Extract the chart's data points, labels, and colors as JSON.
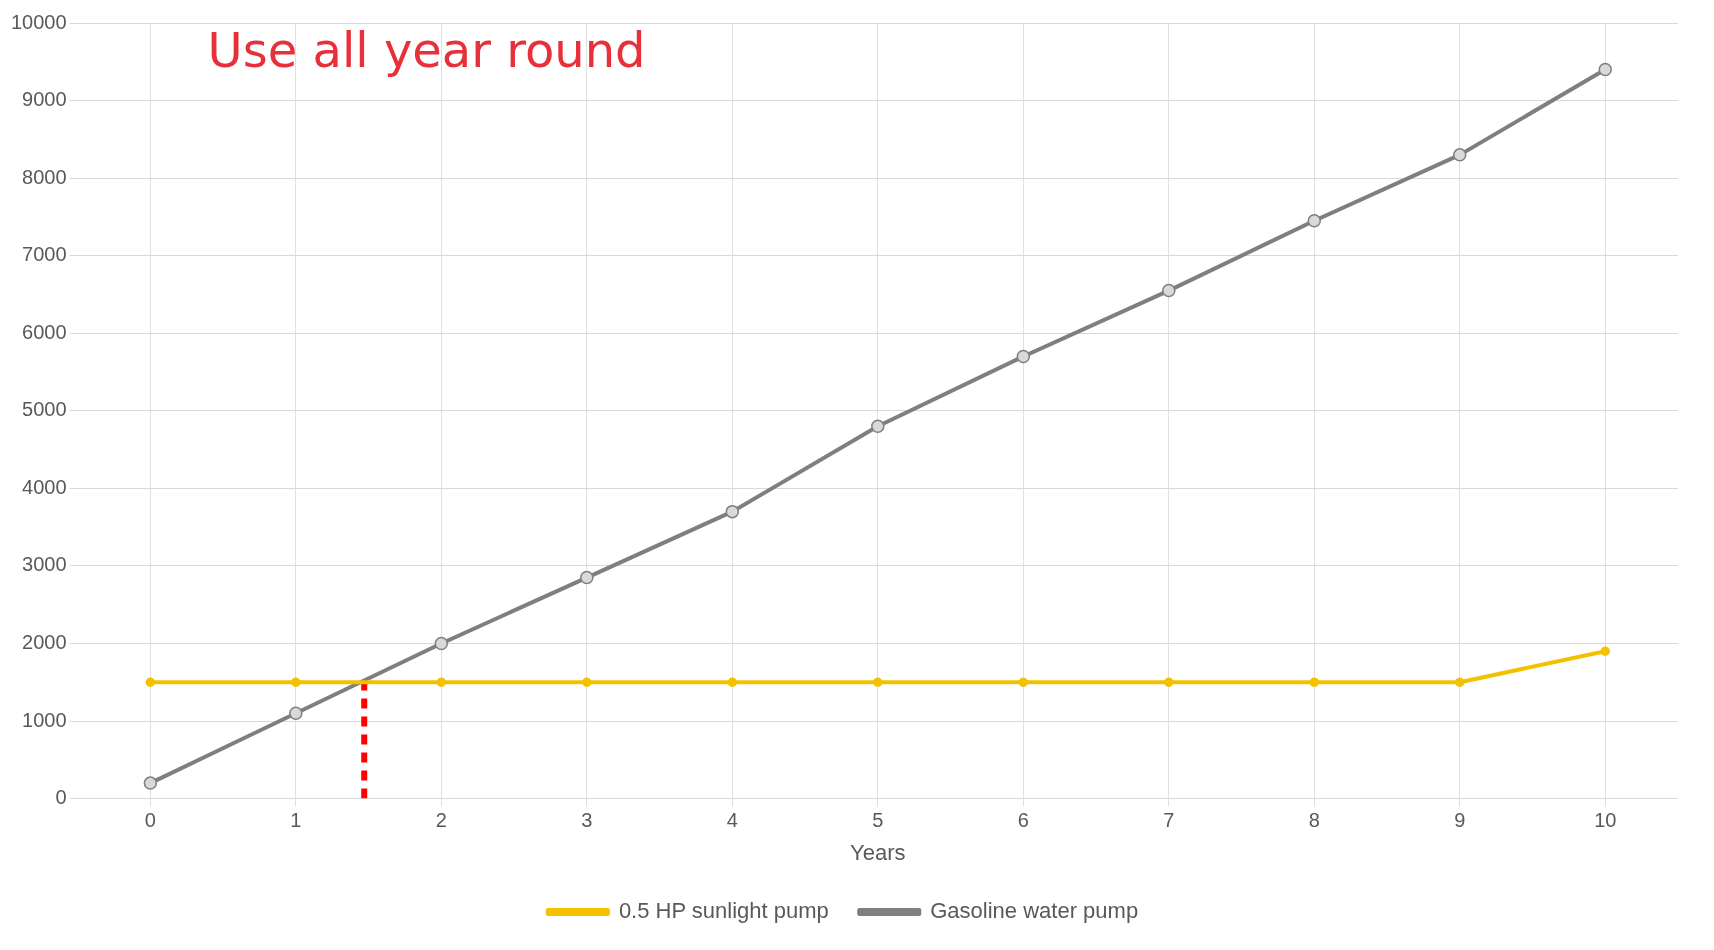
{
  "chart_data": {
    "type": "line",
    "xlabel": "Years",
    "x": [
      0,
      1,
      2,
      3,
      4,
      5,
      6,
      7,
      8,
      9,
      10
    ],
    "series": [
      {
        "name": "0.5 HP sunlight pump",
        "color": "#f2c200",
        "values": [
          1500,
          1500,
          1500,
          1500,
          1500,
          1500,
          1500,
          1500,
          1500,
          1500,
          1900
        ]
      },
      {
        "name": "Gasoline water pump",
        "color": "#7f7f7f",
        "values": [
          200,
          1100,
          2000,
          2850,
          3700,
          4800,
          5700,
          6550,
          7450,
          8300,
          9400
        ]
      },
      {
        "type": "line",
        "color": "#ff0000",
        "x": [
          1.47,
          1.47
        ],
        "values": [
          0,
          1500
        ],
        "line_style": "dashed",
        "marker": "none"
      }
    ],
    "xlim": [
      -0.5,
      10.5
    ],
    "xticks": [
      0,
      1,
      2,
      3,
      4,
      5,
      6,
      7,
      8,
      9,
      10
    ],
    "ylim": [
      0,
      10000
    ],
    "yticks": [
      0,
      1000,
      2000,
      3000,
      4000,
      5000,
      6000,
      7000,
      8000,
      9000,
      10000
    ],
    "annotations": [
      "Use all year round"
    ],
    "grid": true,
    "legend": "bottom",
    "marker": "circle"
  }
}
